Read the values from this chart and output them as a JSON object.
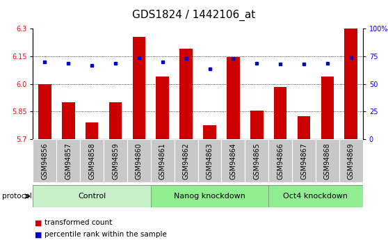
{
  "title": "GDS1824 / 1442106_at",
  "samples": [
    "GSM94856",
    "GSM94857",
    "GSM94858",
    "GSM94859",
    "GSM94860",
    "GSM94861",
    "GSM94862",
    "GSM94863",
    "GSM94864",
    "GSM94865",
    "GSM94866",
    "GSM94867",
    "GSM94868",
    "GSM94869"
  ],
  "transformed_count": [
    6.0,
    5.9,
    5.79,
    5.9,
    6.255,
    6.04,
    6.19,
    5.775,
    6.145,
    5.855,
    5.985,
    5.825,
    6.04,
    6.3
  ],
  "percentile_rank": [
    70,
    69,
    67,
    69,
    74,
    70,
    73,
    64,
    73,
    69,
    68,
    68,
    69,
    74
  ],
  "group_data": [
    {
      "label": "Control",
      "start": 0,
      "end": 4,
      "color": "#c8f0c8"
    },
    {
      "label": "Nanog knockdown",
      "start": 5,
      "end": 9,
      "color": "#90ee90"
    },
    {
      "label": "Oct4 knockdown",
      "start": 10,
      "end": 13,
      "color": "#90ee90"
    }
  ],
  "ylim_left": [
    5.7,
    6.3
  ],
  "ylim_right": [
    0,
    100
  ],
  "yticks_left": [
    5.7,
    5.85,
    6.0,
    6.15,
    6.3
  ],
  "yticks_right": [
    0,
    25,
    50,
    75,
    100
  ],
  "bar_color": "#cc0000",
  "dot_color": "#0000cc",
  "tick_cell_color": "#c8c8c8",
  "bar_width": 0.55,
  "title_fontsize": 11,
  "tick_fontsize": 7,
  "group_fontsize": 8
}
